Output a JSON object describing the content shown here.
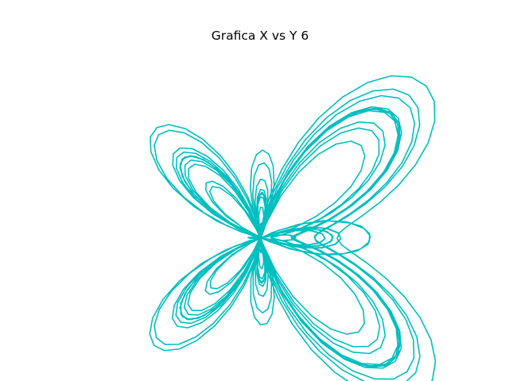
{
  "chart_data": {
    "type": "line",
    "title": "Grafica X vs Y 6",
    "xlabel": "",
    "ylabel": "",
    "axes_visible": false,
    "grid": false,
    "legend": "none",
    "series": [
      {
        "name": "curve",
        "color": "#00bfbf",
        "equation": "r(t) = e^sin(t) - 2cos(4t) + sin^5((2t - pi)/24); x = r sin t; y = r cos t",
        "t_range": [
          0,
          75.398
        ],
        "samples": 1000
      }
    ]
  }
}
